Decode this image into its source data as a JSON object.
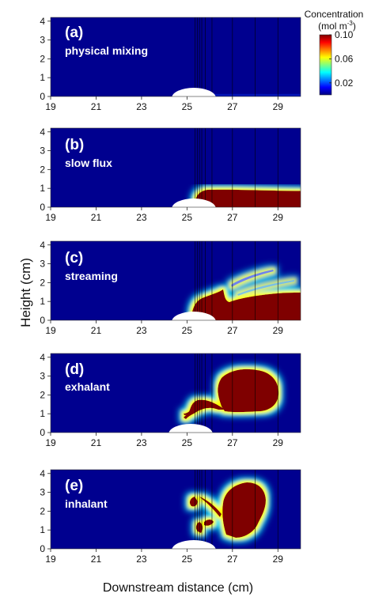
{
  "chart_data": {
    "type": "heatmap",
    "xlabel": "Downstream distance (cm)",
    "ylabel": "Height (cm)",
    "xlim": [
      19,
      30
    ],
    "ylim": [
      0,
      4.2
    ],
    "x_ticks": [
      "19",
      "21",
      "23",
      "25",
      "27",
      "29"
    ],
    "x_tick_values": [
      19,
      21,
      23,
      25,
      27,
      29
    ],
    "y_ticks": [
      "0",
      "1",
      "2",
      "3",
      "4"
    ],
    "y_tick_values": [
      0,
      1,
      2,
      3,
      4
    ],
    "colorbar": {
      "title_line1": "Concentration",
      "title_line2_base": "(mol m",
      "title_line2_sup": "-3",
      "title_line2_end": ")",
      "ticks": [
        "0.10",
        "0.06",
        "0.02"
      ],
      "tick_values": [
        0.1,
        0.06,
        0.02
      ],
      "range": [
        0,
        0.1
      ]
    },
    "vertical_lines_x": [
      25.35,
      25.45,
      25.55,
      25.65,
      25.8,
      26.1,
      27.0,
      28.0,
      29.0
    ],
    "panels": [
      {
        "letter": "(a)",
        "name": "physical mixing",
        "plume": "none"
      },
      {
        "letter": "(b)",
        "name": "slow flux",
        "plume": "thin surface layer from x≈25.2 to 30, height ≈0.5–0.8 cm"
      },
      {
        "letter": "(c)",
        "name": "streaming",
        "plume": "surface layer up to ≈1.2 cm with streaks to ≈2 cm"
      },
      {
        "letter": "(d)",
        "name": "exhalant",
        "plume": "large blob centred x≈27.6, y≈2.5 with diagonal filaments near the mound"
      },
      {
        "letter": "(e)",
        "name": "inhalant",
        "plume": "irregular blob x≈26.5–28.5, y≈0.5–3.5 with filaments near the mound"
      }
    ]
  }
}
